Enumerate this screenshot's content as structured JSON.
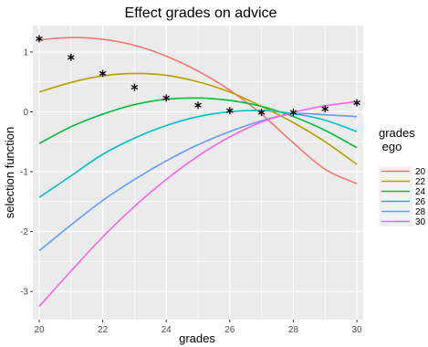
{
  "chart_data": {
    "type": "line",
    "title": "Effect grades on advice",
    "xlabel": "grades",
    "ylabel": "selection function",
    "xlim": [
      19.8,
      30.2
    ],
    "ylim": [
      -3.47,
      1.44
    ],
    "x_ticks": [
      20,
      22,
      24,
      26,
      28,
      30
    ],
    "y_ticks": [
      1,
      0,
      -1,
      -2,
      -3
    ],
    "grid": true,
    "legend": {
      "title_line1": "grades",
      "title_line2": " ego",
      "position": "right"
    },
    "x": [
      20,
      21,
      22,
      23,
      24,
      25,
      26,
      27,
      28,
      29,
      30
    ],
    "series": [
      {
        "name": "20",
        "color": "#F8766D",
        "values": [
          1.2,
          1.24,
          1.21,
          1.11,
          0.93,
          0.68,
          0.36,
          -0.04,
          -0.52,
          -0.96,
          -1.2
        ]
      },
      {
        "name": "22",
        "color": "#B79F00",
        "values": [
          0.33,
          0.49,
          0.6,
          0.64,
          0.61,
          0.5,
          0.33,
          0.09,
          -0.18,
          -0.5,
          -0.88
        ]
      },
      {
        "name": "24",
        "color": "#00BA38",
        "values": [
          -0.53,
          -0.25,
          -0.04,
          0.12,
          0.21,
          0.23,
          0.19,
          0.09,
          -0.08,
          -0.31,
          -0.6
        ]
      },
      {
        "name": "26",
        "color": "#00BFC4",
        "values": [
          -1.43,
          -1.07,
          -0.71,
          -0.44,
          -0.23,
          -0.08,
          0.0,
          0.02,
          -0.03,
          -0.14,
          -0.33
        ]
      },
      {
        "name": "28",
        "color": "#619CFF",
        "values": [
          -2.32,
          -1.89,
          -1.48,
          -1.13,
          -0.82,
          -0.55,
          -0.33,
          -0.15,
          -0.03,
          -0.05,
          -0.08
        ]
      },
      {
        "name": "30",
        "color": "#F564E3",
        "values": [
          -3.25,
          -2.66,
          -2.09,
          -1.58,
          -1.13,
          -0.74,
          -0.42,
          -0.17,
          -0.01,
          0.1,
          0.17
        ]
      }
    ],
    "points": {
      "marker": "asterisk",
      "x": [
        20,
        21,
        22,
        23,
        24,
        25,
        26,
        27,
        28,
        29,
        30
      ],
      "y": [
        1.22,
        0.91,
        0.64,
        0.41,
        0.23,
        0.11,
        0.02,
        -0.01,
        -0.01,
        0.05,
        0.15
      ]
    }
  }
}
